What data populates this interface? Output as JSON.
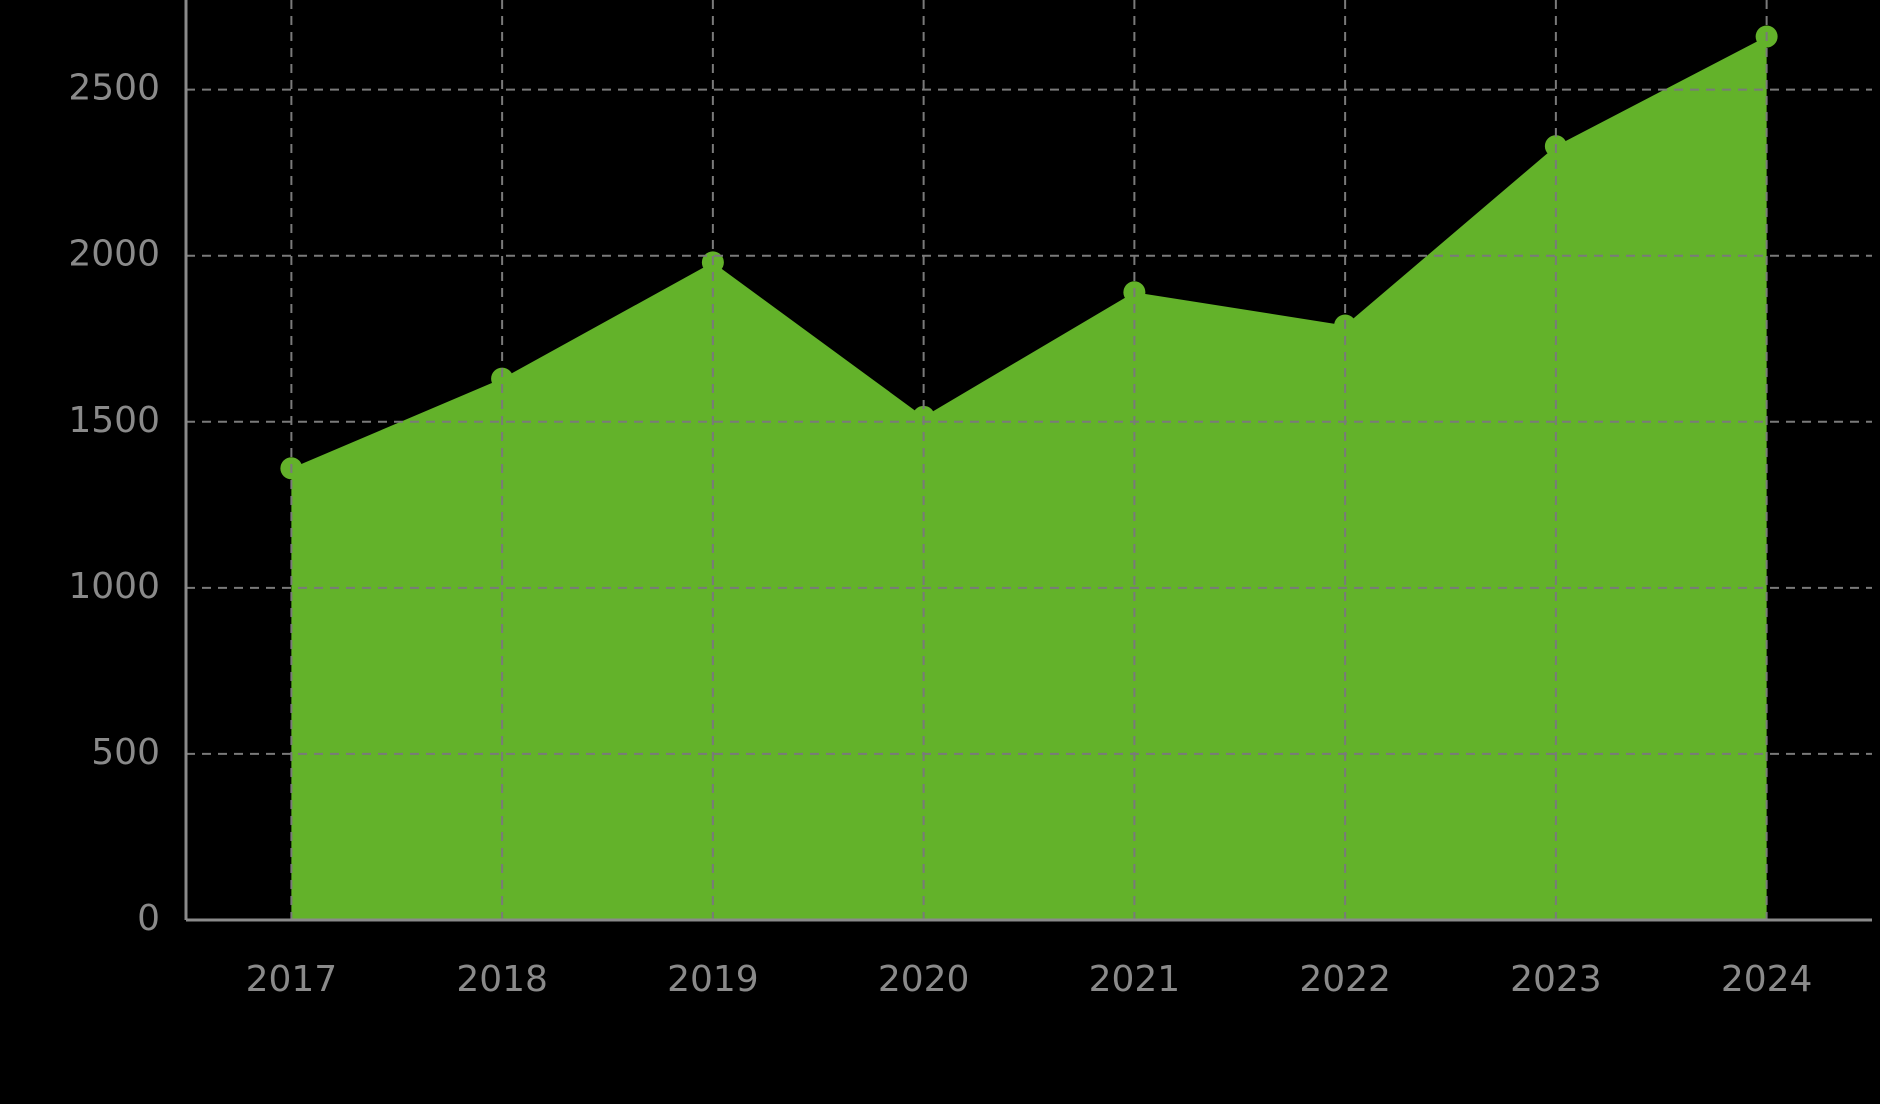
{
  "chart_data": {
    "type": "area",
    "categories": [
      "2017",
      "2018",
      "2019",
      "2020",
      "2021",
      "2022",
      "2023",
      "2024"
    ],
    "values": [
      1360,
      1630,
      1980,
      1515,
      1890,
      1790,
      2330,
      2660
    ],
    "color": "#63b22a",
    "ylim": [
      0,
      2770
    ],
    "yticks": [
      0,
      500,
      1000,
      1500,
      2000,
      2500
    ],
    "grid": true
  }
}
